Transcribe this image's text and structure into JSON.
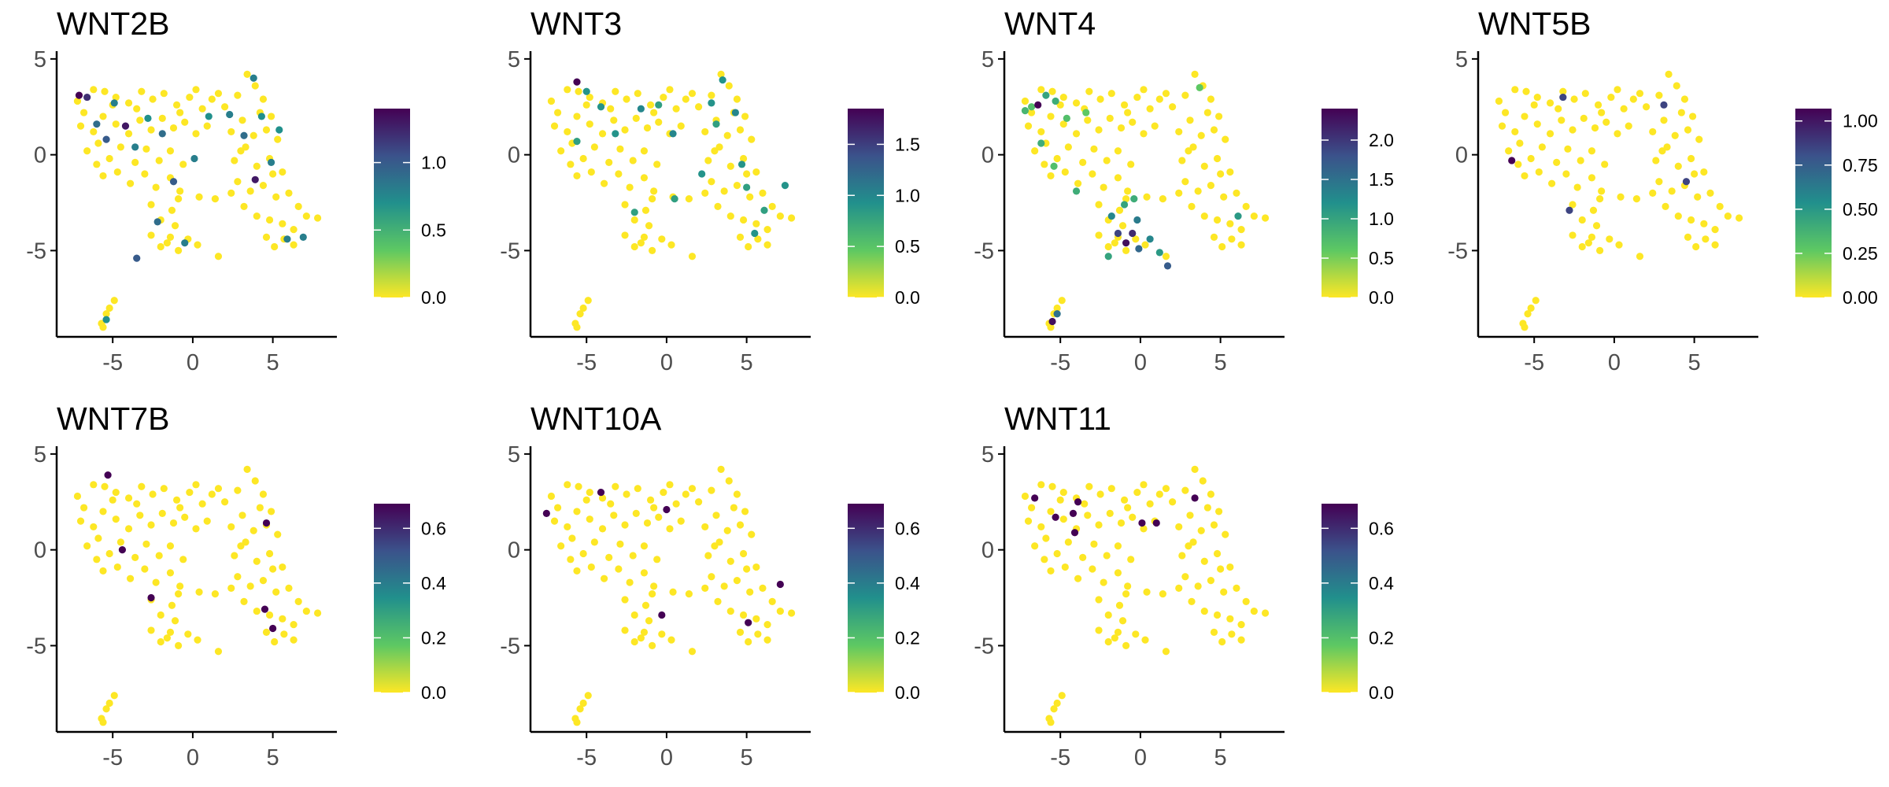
{
  "colormap": {
    "name": "viridis",
    "stops": [
      "#FDE725",
      "#5DC863",
      "#21908C",
      "#3B528B",
      "#440154"
    ]
  },
  "point_base_color": "#FDE725",
  "axes": {
    "x_ticks": [
      -5,
      0,
      5
    ],
    "x_tick_labels": [
      "-5",
      "0",
      "5"
    ],
    "y_ticks": [
      -5,
      0,
      5
    ],
    "y_tick_labels": [
      "-5",
      "0",
      "5"
    ],
    "xlim": [
      -8.5,
      9
    ],
    "ylim": [
      -9.5,
      5.2
    ]
  },
  "panels": [
    {
      "title": "WNT2B",
      "legend_ticks": [
        "0.0",
        "0.5",
        "1.0"
      ],
      "legend_values": [
        0,
        0.5,
        1.0
      ],
      "max": 1.4
    },
    {
      "title": "WNT3",
      "legend_ticks": [
        "0.0",
        "0.5",
        "1.0",
        "1.5"
      ],
      "legend_values": [
        0,
        0.5,
        1.0,
        1.5
      ],
      "max": 1.85
    },
    {
      "title": "WNT4",
      "legend_ticks": [
        "0.0",
        "0.5",
        "1.0",
        "1.5",
        "2.0"
      ],
      "legend_values": [
        0,
        0.5,
        1.0,
        1.5,
        2.0
      ],
      "max": 2.4
    },
    {
      "title": "WNT5B",
      "legend_ticks": [
        "0.00",
        "0.25",
        "0.50",
        "0.75",
        "1.00"
      ],
      "legend_values": [
        0,
        0.25,
        0.5,
        0.75,
        1.0
      ],
      "max": 1.07
    },
    {
      "title": "WNT7B",
      "legend_ticks": [
        "0.0",
        "0.2",
        "0.4",
        "0.6"
      ],
      "legend_values": [
        0,
        0.2,
        0.4,
        0.6
      ],
      "max": 0.69
    },
    {
      "title": "WNT10A",
      "legend_ticks": [
        "0.0",
        "0.2",
        "0.4",
        "0.6"
      ],
      "legend_values": [
        0,
        0.2,
        0.4,
        0.6
      ],
      "max": 0.69
    },
    {
      "title": "WNT11",
      "legend_ticks": [
        "0.0",
        "0.2",
        "0.4",
        "0.6"
      ],
      "legend_values": [
        0,
        0.2,
        0.4,
        0.6
      ],
      "max": 0.69
    }
  ],
  "chart_data": {
    "type": "scatter",
    "cell_cloud": [
      [
        -7.2,
        2.8
      ],
      [
        -6.8,
        2.2
      ],
      [
        -6.2,
        3.4
      ],
      [
        -5.5,
        3.3
      ],
      [
        -4.8,
        3.0
      ],
      [
        -4.0,
        2.7
      ],
      [
        -3.2,
        3.3
      ],
      [
        -2.5,
        2.9
      ],
      [
        -1.8,
        3.2
      ],
      [
        -1.0,
        2.6
      ],
      [
        -0.2,
        3.0
      ],
      [
        0.6,
        2.4
      ],
      [
        1.2,
        2.9
      ],
      [
        2.0,
        2.5
      ],
      [
        2.8,
        3.1
      ],
      [
        3.4,
        4.2
      ],
      [
        3.9,
        3.6
      ],
      [
        4.4,
        2.9
      ],
      [
        4.9,
        2.0
      ],
      [
        -7.0,
        1.5
      ],
      [
        -6.2,
        1.2
      ],
      [
        -5.6,
        2.0
      ],
      [
        -4.8,
        1.6
      ],
      [
        -4.0,
        1.1
      ],
      [
        -3.3,
        1.8
      ],
      [
        -2.6,
        1.3
      ],
      [
        -1.9,
        1.9
      ],
      [
        -1.2,
        1.4
      ],
      [
        -0.5,
        1.7
      ],
      [
        0.2,
        1.1
      ],
      [
        0.9,
        1.5
      ],
      [
        2.4,
        1.2
      ],
      [
        3.1,
        1.8
      ],
      [
        3.8,
        1.0
      ],
      [
        4.6,
        1.3
      ],
      [
        5.3,
        0.8
      ],
      [
        -6.6,
        0.2
      ],
      [
        -5.9,
        0.6
      ],
      [
        -5.2,
        -0.2
      ],
      [
        -4.5,
        0.4
      ],
      [
        -3.6,
        -0.4
      ],
      [
        -2.9,
        0.3
      ],
      [
        -2.1,
        -0.3
      ],
      [
        -1.4,
        0.2
      ],
      [
        -0.6,
        -0.5
      ],
      [
        2.6,
        -0.3
      ],
      [
        3.3,
        0.4
      ],
      [
        4.0,
        -0.6
      ],
      [
        4.8,
        -0.2
      ],
      [
        5.6,
        -0.9
      ],
      [
        -5.6,
        -1.1
      ],
      [
        -4.7,
        -0.9
      ],
      [
        -3.9,
        -1.5
      ],
      [
        -3.0,
        -1.0
      ],
      [
        -2.3,
        -1.7
      ],
      [
        -1.4,
        -1.2
      ],
      [
        -0.8,
        -1.9
      ],
      [
        2.8,
        -1.4
      ],
      [
        3.6,
        -1.9
      ],
      [
        4.4,
        -1.6
      ],
      [
        5.2,
        -2.2
      ],
      [
        6.0,
        -2.0
      ],
      [
        6.6,
        -2.7
      ],
      [
        -2.6,
        -2.6
      ],
      [
        -2.0,
        -3.4
      ],
      [
        -1.3,
        -2.9
      ],
      [
        -0.9,
        -2.3
      ],
      [
        0.4,
        -2.2
      ],
      [
        1.4,
        -2.3
      ],
      [
        2.4,
        -2.0
      ],
      [
        3.2,
        -2.7
      ],
      [
        4.0,
        -3.2
      ],
      [
        4.8,
        -3.4
      ],
      [
        5.6,
        -3.6
      ],
      [
        6.3,
        -3.9
      ],
      [
        7.1,
        -3.2
      ],
      [
        7.8,
        -3.3
      ],
      [
        -2.6,
        -4.2
      ],
      [
        -2.0,
        -4.8
      ],
      [
        -1.4,
        -4.3
      ],
      [
        -0.9,
        -5.0
      ],
      [
        -0.3,
        -4.4
      ],
      [
        0.3,
        -4.7
      ],
      [
        -1.1,
        -3.7
      ],
      [
        4.6,
        -4.3
      ],
      [
        5.1,
        -4.8
      ],
      [
        5.7,
        -4.4
      ],
      [
        6.3,
        -4.7
      ],
      [
        1.6,
        -5.3
      ],
      [
        -5.4,
        -8.3
      ],
      [
        -5.7,
        -8.8
      ],
      [
        -5.2,
        -8.0
      ],
      [
        -4.9,
        -7.6
      ],
      [
        -5.6,
        -9.0
      ],
      [
        0.2,
        3.4
      ],
      [
        1.6,
        3.2
      ],
      [
        -3.5,
        2.4
      ],
      [
        -0.8,
        2.2
      ],
      [
        3.0,
        0.2
      ],
      [
        4.2,
        2.2
      ],
      [
        -5.0,
        2.6
      ],
      [
        -6.0,
        -0.5
      ],
      [
        5.0,
        -1.0
      ],
      [
        -1.6,
        -4.6
      ]
    ],
    "panels": [
      {
        "title": "WNT2B",
        "points": [
          [
            -7.1,
            3.1,
            1.4
          ],
          [
            -6.6,
            3.0,
            1.2
          ],
          [
            -6.0,
            1.6,
            0.9
          ],
          [
            -5.4,
            0.8,
            1.0
          ],
          [
            -4.9,
            2.7,
            0.8
          ],
          [
            -4.2,
            1.5,
            1.3
          ],
          [
            -3.6,
            0.4,
            0.8
          ],
          [
            -2.8,
            1.9,
            0.7
          ],
          [
            -1.9,
            1.1,
            0.9
          ],
          [
            -1.2,
            -1.4,
            1.0
          ],
          [
            0.1,
            -0.2,
            0.8
          ],
          [
            1.0,
            2.0,
            0.7
          ],
          [
            2.3,
            2.1,
            0.8
          ],
          [
            3.2,
            1.0,
            0.9
          ],
          [
            3.8,
            4.0,
            0.8
          ],
          [
            4.3,
            2.0,
            0.7
          ],
          [
            3.9,
            -1.3,
            1.3
          ],
          [
            4.9,
            -0.4,
            0.8
          ],
          [
            5.4,
            1.3,
            0.7
          ],
          [
            5.9,
            -4.4,
            0.8
          ],
          [
            6.9,
            -4.3,
            0.8
          ],
          [
            -2.2,
            -3.5,
            0.9
          ],
          [
            -0.5,
            -4.6,
            0.8
          ],
          [
            -5.4,
            -8.6,
            0.7
          ],
          [
            -3.5,
            -5.4,
            1.0
          ]
        ]
      },
      {
        "title": "WNT3",
        "points": [
          [
            -5.6,
            3.8,
            1.85
          ],
          [
            -5.0,
            3.3,
            0.9
          ],
          [
            -4.1,
            2.5,
            0.9
          ],
          [
            -3.2,
            1.1,
            0.9
          ],
          [
            -1.6,
            2.4,
            1.0
          ],
          [
            -0.5,
            2.6,
            0.8
          ],
          [
            0.4,
            1.1,
            1.0
          ],
          [
            -5.6,
            0.7,
            0.8
          ],
          [
            2.8,
            2.7,
            0.9
          ],
          [
            3.1,
            1.6,
            0.8
          ],
          [
            3.5,
            3.9,
            0.9
          ],
          [
            4.3,
            2.2,
            1.0
          ],
          [
            4.7,
            -0.5,
            0.9
          ],
          [
            5.0,
            -1.7,
            0.8
          ],
          [
            5.5,
            -4.1,
            0.9
          ],
          [
            6.1,
            -2.9,
            0.8
          ],
          [
            7.4,
            -1.6,
            0.9
          ],
          [
            -2.0,
            -3.0,
            0.8
          ],
          [
            0.5,
            -2.3,
            0.8
          ],
          [
            2.2,
            -1.0,
            0.9
          ]
        ]
      },
      {
        "title": "WNT4",
        "points": [
          [
            -7.2,
            2.3,
            0.8
          ],
          [
            -6.8,
            2.5,
            0.7
          ],
          [
            -6.4,
            2.6,
            2.4
          ],
          [
            -5.9,
            3.1,
            1.0
          ],
          [
            -5.3,
            2.8,
            0.9
          ],
          [
            -4.6,
            1.9,
            0.7
          ],
          [
            -3.4,
            2.2,
            0.6
          ],
          [
            -6.2,
            0.6,
            0.9
          ],
          [
            -5.4,
            -0.6,
            0.7
          ],
          [
            -4.0,
            -1.9,
            0.9
          ],
          [
            -1.0,
            -2.6,
            1.0
          ],
          [
            -1.8,
            -3.2,
            1.3
          ],
          [
            -1.4,
            -4.1,
            1.9
          ],
          [
            -0.9,
            -4.6,
            2.3
          ],
          [
            -0.5,
            -4.1,
            2.1
          ],
          [
            -0.1,
            -4.9,
            1.6
          ],
          [
            0.6,
            -4.4,
            1.3
          ],
          [
            -0.2,
            -3.4,
            1.4
          ],
          [
            1.2,
            -5.1,
            1.1
          ],
          [
            1.7,
            -5.8,
            1.7
          ],
          [
            -2.0,
            -5.3,
            1.0
          ],
          [
            3.7,
            3.5,
            0.6
          ],
          [
            6.1,
            -3.2,
            1.1
          ],
          [
            -5.5,
            -8.7,
            2.3
          ],
          [
            -5.2,
            -8.3,
            1.5
          ],
          [
            -0.4,
            -2.3,
            0.9
          ]
        ]
      },
      {
        "title": "WNT5B",
        "points": [
          [
            -6.4,
            -0.3,
            1.07
          ],
          [
            -3.2,
            3.0,
            0.85
          ],
          [
            3.1,
            2.6,
            0.85
          ],
          [
            4.5,
            -1.4,
            0.85
          ],
          [
            -2.8,
            -2.9,
            0.85
          ]
        ]
      },
      {
        "title": "WNT7B",
        "points": [
          [
            -5.3,
            3.9,
            0.69
          ],
          [
            -4.4,
            0.0,
            0.69
          ],
          [
            -2.6,
            -2.5,
            0.69
          ],
          [
            4.6,
            1.4,
            0.69
          ],
          [
            4.5,
            -3.1,
            0.69
          ],
          [
            5.0,
            -4.1,
            0.69
          ]
        ]
      },
      {
        "title": "WNT10A",
        "points": [
          [
            -7.5,
            1.9,
            0.69
          ],
          [
            -4.1,
            3.0,
            0.69
          ],
          [
            -0.3,
            -3.4,
            0.69
          ],
          [
            0.0,
            2.1,
            0.69
          ],
          [
            5.1,
            -3.8,
            0.69
          ],
          [
            7.1,
            -1.8,
            0.69
          ]
        ]
      },
      {
        "title": "WNT11",
        "points": [
          [
            -6.6,
            2.7,
            0.69
          ],
          [
            -5.3,
            1.7,
            0.69
          ],
          [
            -4.2,
            1.9,
            0.69
          ],
          [
            -3.9,
            2.5,
            0.69
          ],
          [
            -4.1,
            0.9,
            0.69
          ],
          [
            0.1,
            1.4,
            0.69
          ],
          [
            1.0,
            1.4,
            0.69
          ],
          [
            3.4,
            2.7,
            0.69
          ]
        ]
      }
    ]
  }
}
